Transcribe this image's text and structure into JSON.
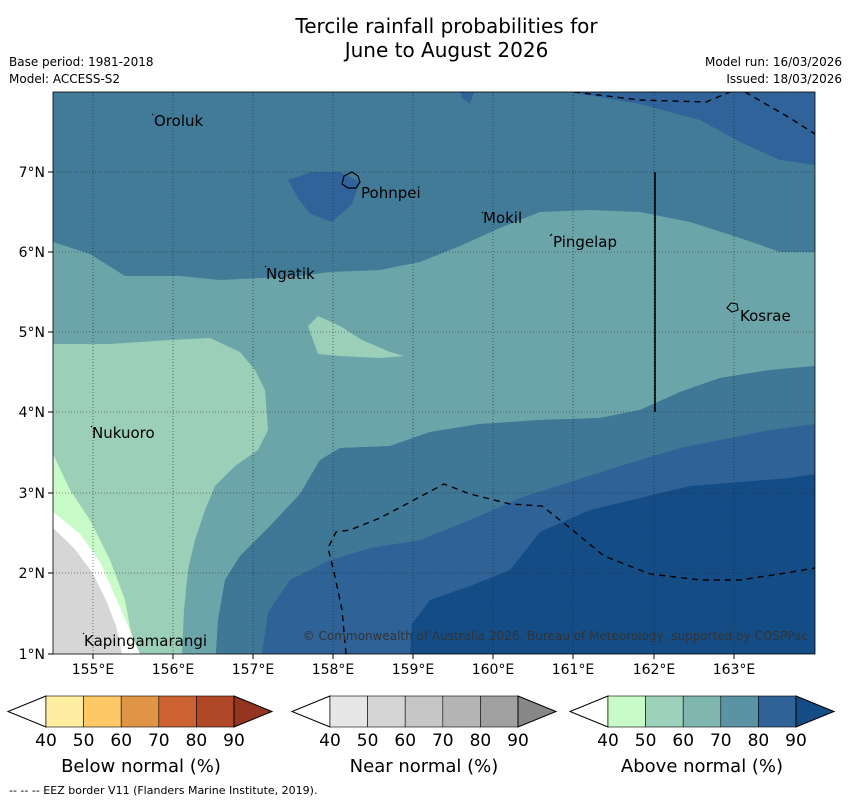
{
  "title_line1": "Tercile rainfall probabilities for",
  "title_line2": "June to August 2026",
  "meta": {
    "base_period": "Base period: 1981-2018",
    "model": "Model: ACCESS-S2",
    "model_run": "Model run: 16/03/2026",
    "issued": "Issued: 18/03/2026"
  },
  "map": {
    "lat_labels": [
      "7°N",
      "6°N",
      "5°N",
      "4°N",
      "3°N",
      "2°N",
      "1°N"
    ],
    "lon_labels": [
      "155°E",
      "156°E",
      "157°E",
      "158°E",
      "159°E",
      "160°E",
      "161°E",
      "162°E",
      "163°E"
    ],
    "places": {
      "oroluk": "Oroluk",
      "pohnpei": "Pohnpei",
      "mokil": "Mokil",
      "pingelap": "Pingelap",
      "ngatik": "Ngatik",
      "kosrae": "Kosrae",
      "nukuoro": "Nukuoro",
      "kapingamarangi": "Kapingamarangi"
    },
    "credit": "© Commonwealth of Australia 2026, Bureau of Meteorology, supported by COSPPac"
  },
  "legend": {
    "below": {
      "title": "Below normal (%)",
      "ticks": [
        "40",
        "50",
        "60",
        "70",
        "80",
        "90"
      ],
      "colors": [
        "#ffeea1",
        "#fdc865",
        "#e09446",
        "#cc6232",
        "#b04828",
        "#933520"
      ]
    },
    "near": {
      "title": "Near normal (%)",
      "ticks": [
        "40",
        "50",
        "60",
        "70",
        "80",
        "90"
      ],
      "colors": [
        "#e6e6e6",
        "#d4d4d4",
        "#c6c6c6",
        "#b4b4b4",
        "#a0a0a0",
        "#878787"
      ]
    },
    "above": {
      "title": "Above normal (%)",
      "ticks": [
        "40",
        "50",
        "60",
        "70",
        "80",
        "90"
      ],
      "colors": [
        "#c8fbc8",
        "#9dd1b9",
        "#7fb7b0",
        "#5a93a3",
        "#2f6297",
        "#144c86"
      ]
    }
  },
  "eez_note": "-- -- -- EEZ border V11 (Flanders Marine Institute, 2019)."
}
